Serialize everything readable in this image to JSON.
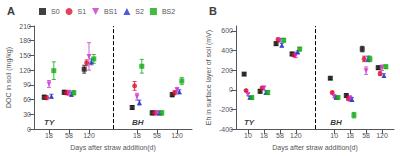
{
  "chart_data": [
    {
      "type": "scatter",
      "title": "A",
      "xlabel": "Days after straw addition(d)",
      "ylabel": "DOC in soil (mg/kg)",
      "categories": [
        18,
        58,
        120,
        18,
        58,
        120
      ],
      "groups": [
        "TY",
        "TY",
        "TY",
        "BH",
        "BH",
        "BH"
      ],
      "series": [
        {
          "name": "S0",
          "color": "#111111",
          "marker": "square",
          "values": [
            65,
            75,
            122,
            44,
            33,
            70
          ],
          "errors": [
            4,
            4,
            8,
            4,
            4,
            4
          ]
        },
        {
          "name": "S1",
          "color": "#dd1133",
          "marker": "circle",
          "values": [
            64,
            74,
            135,
            88,
            33,
            74
          ],
          "errors": [
            4,
            4,
            6,
            9,
            4,
            4
          ]
        },
        {
          "name": "BS1",
          "color": "#cc33cc",
          "marker": "triangle_down",
          "values": [
            92,
            74,
            148,
            66,
            33,
            80
          ],
          "errors": [
            7,
            5,
            28,
            7,
            4,
            4
          ]
        },
        {
          "name": "S2",
          "color": "#2233cc",
          "marker": "triangle_up",
          "values": [
            67,
            71,
            137,
            54,
            33,
            76
          ],
          "errors": [
            4,
            4,
            6,
            5,
            4,
            4
          ]
        },
        {
          "name": "BS2",
          "color": "#11aa11",
          "marker": "square",
          "values": [
            119,
            74,
            143,
            128,
            33,
            98
          ],
          "errors": [
            18,
            4,
            9,
            14,
            4,
            7
          ]
        }
      ],
      "ylim": [
        0,
        210
      ],
      "yticks": [
        0,
        30,
        60,
        90,
        120,
        150,
        180,
        210
      ],
      "grid": false,
      "legend": "top left"
    },
    {
      "type": "scatter",
      "title": "B",
      "xlabel": "Days after straw addition(d)",
      "ylabel": "Eh in surface layer of soil (mV)",
      "categories": [
        10,
        18,
        58,
        120,
        10,
        18,
        58,
        120
      ],
      "groups": [
        "TY",
        "TY",
        "TY",
        "TY",
        "BH",
        "BH",
        "BH",
        "BH"
      ],
      "series": [
        {
          "name": "S0",
          "color": "#111111",
          "marker": "square",
          "values": [
            160,
            -15,
            470,
            365,
            118,
            -58,
            415,
            225
          ],
          "errors": [
            12,
            18,
            18,
            18,
            13,
            18,
            28,
            18
          ]
        },
        {
          "name": "S1",
          "color": "#dd1133",
          "marker": "circle",
          "values": [
            -8,
            18,
            510,
            355,
            -28,
            -88,
            315,
            165
          ],
          "errors": [
            9,
            13,
            18,
            18,
            13,
            18,
            28,
            18
          ]
        },
        {
          "name": "BS1",
          "color": "#cc33cc",
          "marker": "triangle_down",
          "values": [
            -48,
            18,
            505,
            355,
            -68,
            -88,
            195,
            225
          ],
          "errors": [
            13,
            18,
            18,
            28,
            13,
            28,
            38,
            28
          ]
        },
        {
          "name": "S2",
          "color": "#2233cc",
          "marker": "triangle_up",
          "values": [
            -78,
            -28,
            455,
            385,
            -78,
            -98,
            315,
            145
          ],
          "errors": [
            9,
            18,
            18,
            13,
            13,
            18,
            28,
            18
          ]
        },
        {
          "name": "BS2",
          "color": "#11aa11",
          "marker": "square",
          "values": [
            -78,
            -28,
            505,
            415,
            -78,
            -258,
            315,
            235
          ],
          "errors": [
            13,
            18,
            18,
            18,
            13,
            28,
            28,
            18
          ]
        }
      ],
      "ylim": [
        -400,
        650
      ],
      "yticks": [
        -400,
        -200,
        0,
        200,
        400,
        600
      ],
      "grid": false
    }
  ]
}
